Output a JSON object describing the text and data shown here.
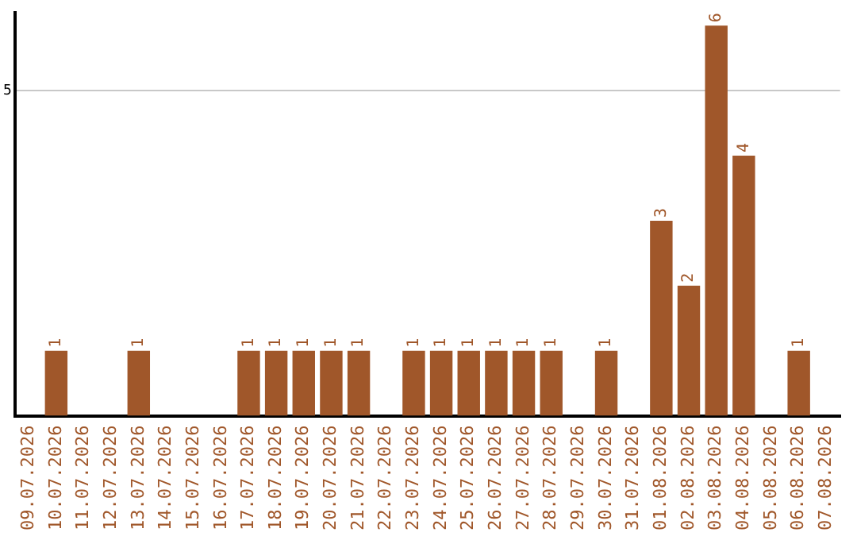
{
  "chart_data": {
    "type": "bar",
    "categories": [
      "09.07.2026",
      "10.07.2026",
      "11.07.2026",
      "12.07.2026",
      "13.07.2026",
      "14.07.2026",
      "15.07.2026",
      "16.07.2026",
      "17.07.2026",
      "18.07.2026",
      "19.07.2026",
      "20.07.2026",
      "21.07.2026",
      "22.07.2026",
      "23.07.2026",
      "24.07.2026",
      "25.07.2026",
      "26.07.2026",
      "27.07.2026",
      "28.07.2026",
      "29.07.2026",
      "30.07.2026",
      "31.07.2026",
      "01.08.2026",
      "02.08.2026",
      "03.08.2026",
      "04.08.2026",
      "05.08.2026",
      "06.08.2026",
      "07.08.2026"
    ],
    "values": [
      0,
      1,
      0,
      0,
      1,
      0,
      0,
      0,
      1,
      1,
      1,
      1,
      1,
      0,
      1,
      1,
      1,
      1,
      1,
      1,
      0,
      1,
      0,
      3,
      2,
      6,
      4,
      0,
      1,
      0
    ],
    "value_labels": [
      null,
      "1",
      null,
      null,
      "1",
      null,
      null,
      null,
      "1",
      "1",
      "1",
      "1",
      "1",
      null,
      "1",
      "1",
      "1",
      "1",
      "1",
      "1",
      null,
      "1",
      null,
      "3",
      "2",
      "6",
      "4",
      null,
      "1",
      null
    ],
    "color": "#a0572a",
    "ylim": [
      0,
      6.2
    ],
    "yticks": [
      5
    ],
    "grid": "y",
    "legend": false
  }
}
